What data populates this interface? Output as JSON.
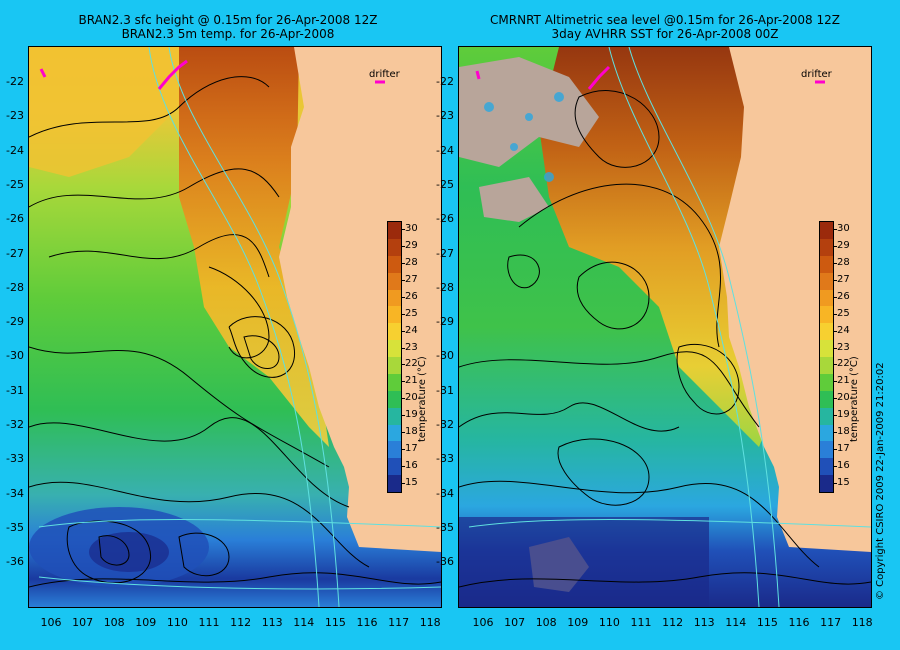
{
  "left_panel": {
    "title_line1": "BRAN2.3 sfc height @ 0.15m for 26-Apr-2008 12Z",
    "title_line2": "BRAN2.3 5m temp. for 26-Apr-2008",
    "drifter_label": "drifter"
  },
  "right_panel": {
    "title_line1": "CMRNRT Altimetric sea level  @0.15m  for 26-Apr-2008 12Z",
    "title_line2": "3day AVHRR SST for 26-Apr-2008 00Z",
    "drifter_label": "drifter"
  },
  "latitude_labels": [
    "-22",
    "-23",
    "-24",
    "-25",
    "-26",
    "-27",
    "-28",
    "-29",
    "-30",
    "-31",
    "-32",
    "-33",
    "-34",
    "-35",
    "-36"
  ],
  "longitude_labels": [
    "106",
    "107",
    "108",
    "109",
    "110",
    "111",
    "112",
    "113",
    "114",
    "115",
    "116",
    "117",
    "118"
  ],
  "colorbar": {
    "title": "temperature (°C)",
    "ticks": [
      "30",
      "29",
      "28",
      "27",
      "26",
      "25",
      "24",
      "23",
      "22",
      "21",
      "20",
      "19",
      "18",
      "17",
      "16",
      "15"
    ],
    "colors": [
      "#9b2a0c",
      "#b4400e",
      "#cd5a10",
      "#e0791a",
      "#f09a20",
      "#f8b525",
      "#f7d030",
      "#d7e23a",
      "#a8d83a",
      "#5fcc3a",
      "#2fbe55",
      "#26b6a0",
      "#2ba7e0",
      "#2a7fd8",
      "#2050b8",
      "#1a2a8a"
    ]
  },
  "copyright": "© Copyright CSIRO 2009    22-Jan-2009 21:20:02",
  "map_colors": {
    "land": "#f7c79b",
    "cloud": "#b8a59a",
    "contour": "#000000",
    "bathymetry": "#5fe0e0",
    "drifter": "#ff00cc",
    "background": "#19c6f3"
  }
}
